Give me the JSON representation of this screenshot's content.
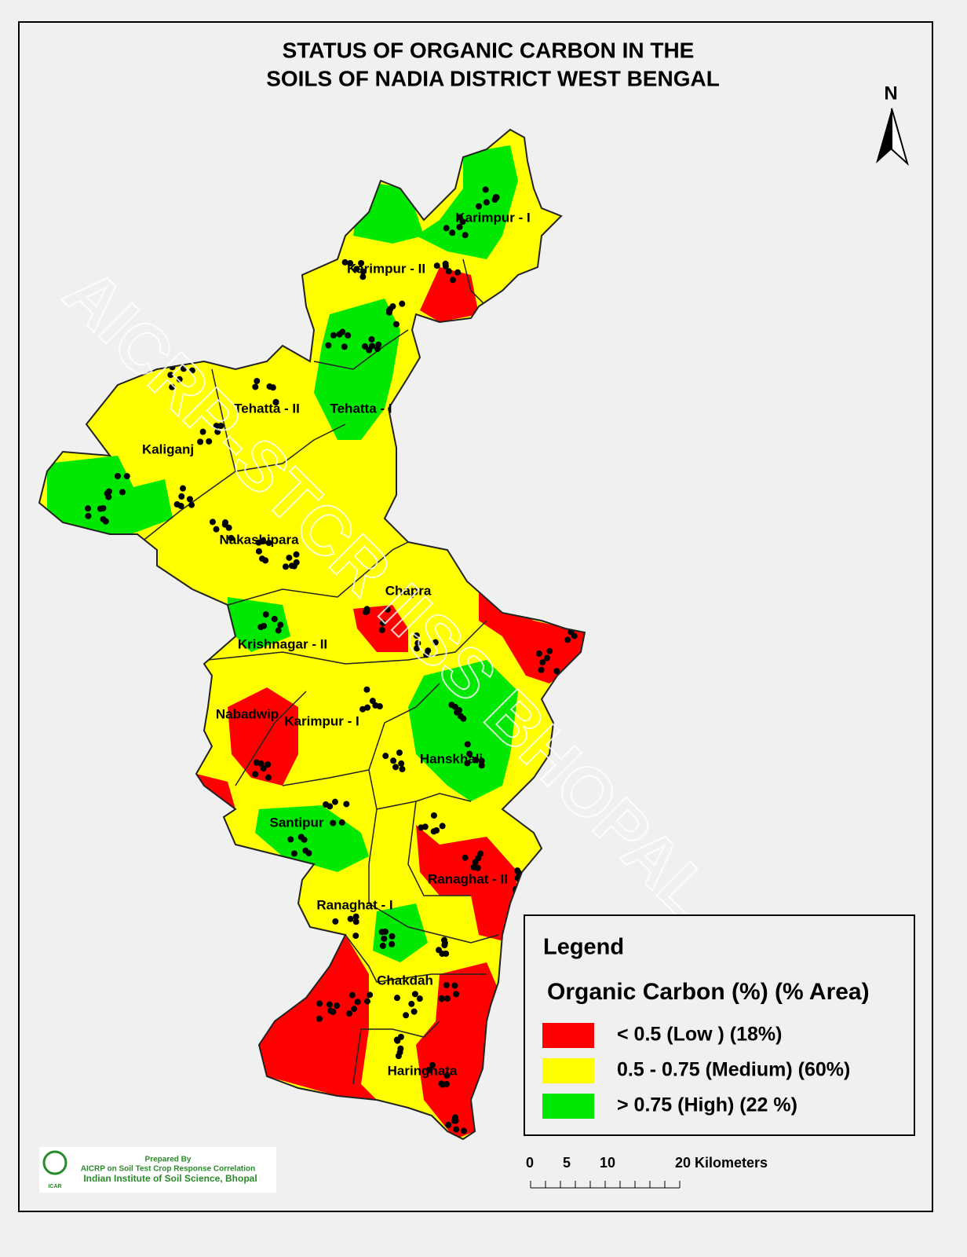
{
  "title": [
    "STATUS OF ORGANIC CARBON  IN THE",
    "SOILS OF NADIA DISTRICT WEST BENGAL"
  ],
  "north": "N",
  "blocks": [
    "Karimpur - I",
    "Karimpur - II",
    "Tehatta - II",
    "Tehatta - I",
    "Kaliganj",
    "Nakashipara",
    "Chapra",
    "Krishnagar - II",
    "Nabadwip",
    "Karimpur - I",
    "Hanskhali",
    "Santipur",
    "Ranaghat - II",
    "Ranaghat - I",
    "Chakdah",
    "Haringhata"
  ],
  "watermark": "AICRP-STCR IISS BHOPAL",
  "legend": {
    "title": "Legend",
    "subtitle": "Organic Carbon (%)  (% Area)",
    "items": [
      {
        "color": "#ff0000",
        "label": "<  0.5   (Low ) (18%)"
      },
      {
        "color": "#ffff00",
        "label": "0.5  - 0.75   (Medium)  (60%)"
      },
      {
        "color": "#00e800",
        "label": "> 0.75   (High) (22 %)"
      }
    ]
  },
  "scale": [
    "0",
    "5",
    "10",
    "20 Kilometers"
  ],
  "credit": {
    "logo": "ICAR",
    "prepared": "Prepared By",
    "project": "AICRP on Soil Test Crop Response Correlation",
    "institute": "Indian Institute of Soil Science, Bhopal"
  }
}
